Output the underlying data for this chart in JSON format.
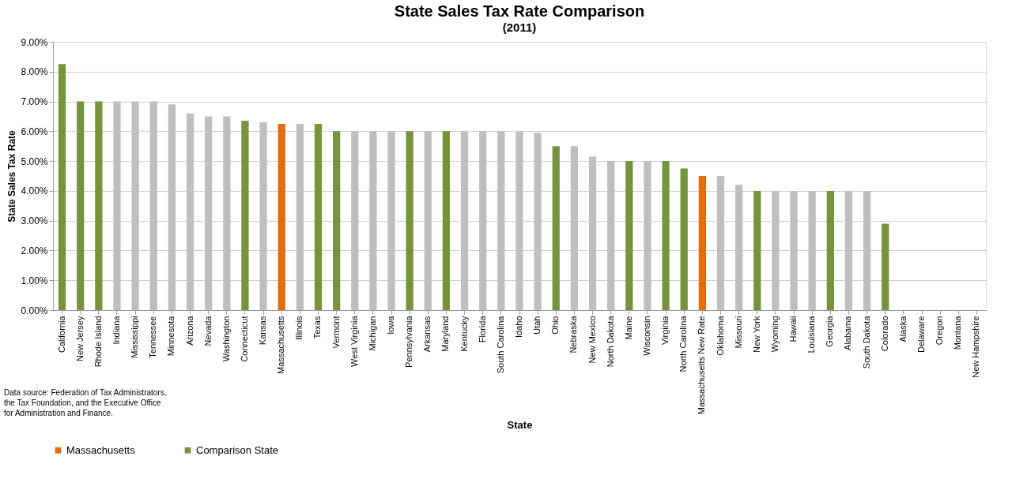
{
  "chart_data": {
    "type": "bar",
    "title": "State Sales Tax Rate Comparison",
    "subtitle": "(2011)",
    "xlabel": "State",
    "ylabel": "State Sales Tax Rate",
    "categories": [
      "California",
      "New Jersey",
      "Rhode Island",
      "Indiana",
      "Mississippi",
      "Tennessee",
      "Minnesota",
      "Arizona",
      "Nevada",
      "Washington",
      "Connecticut",
      "Kansas",
      "Massachusetts",
      "Illinois",
      "Texas",
      "Vermont",
      "West Virginia",
      "Michigan",
      "Iowa",
      "Pennsylvania",
      "Arkansas",
      "Maryland",
      "Kentucky",
      "Florida",
      "South Carolina",
      "Idaho",
      "Utah",
      "Ohio",
      "Nebraska",
      "New Mexico",
      "North Dakota",
      "Maine",
      "Wisconsin",
      "Virginia",
      "North Carolina",
      "Massachusetts New Rate",
      "Oklahoma",
      "Missouri",
      "New York",
      "Wyoming",
      "Hawaii",
      "Louisiana",
      "Georgia",
      "Alabama",
      "South Dakota",
      "Colorado",
      "Alaska",
      "Delaware",
      "Oregon",
      "Montana",
      "New Hampshire"
    ],
    "series": [
      {
        "name": "Massachusetts",
        "color": "#e46c0a",
        "values": [
          null,
          null,
          null,
          null,
          null,
          null,
          null,
          null,
          null,
          null,
          null,
          null,
          6.25,
          null,
          null,
          null,
          null,
          null,
          null,
          null,
          null,
          null,
          null,
          null,
          null,
          null,
          null,
          null,
          null,
          null,
          null,
          null,
          null,
          null,
          null,
          4.5,
          null,
          null,
          null,
          null,
          null,
          null,
          null,
          null,
          null,
          null,
          null,
          null,
          null,
          null,
          null
        ]
      },
      {
        "name": "Comparison State",
        "color": "#77933c",
        "values": [
          8.25,
          7,
          7,
          null,
          null,
          null,
          null,
          null,
          null,
          null,
          6.35,
          null,
          null,
          null,
          6.25,
          6,
          null,
          null,
          null,
          6,
          null,
          6,
          null,
          null,
          null,
          null,
          null,
          5.5,
          null,
          null,
          null,
          5,
          null,
          5,
          4.75,
          null,
          null,
          null,
          4,
          null,
          null,
          null,
          4,
          null,
          null,
          2.9,
          null,
          null,
          null,
          null,
          null
        ]
      },
      {
        "color": "#bfbfbf",
        "values": [
          null,
          null,
          null,
          7,
          7,
          7,
          6.9,
          6.6,
          6.5,
          6.5,
          null,
          6.3,
          null,
          6.25,
          null,
          null,
          6,
          6,
          6,
          null,
          6,
          null,
          6,
          6,
          6,
          6,
          5.95,
          null,
          5.5,
          5.15,
          5,
          null,
          5,
          null,
          null,
          null,
          4.5,
          4.2,
          null,
          4,
          4,
          4,
          null,
          4,
          4,
          null,
          0,
          0,
          0,
          0,
          0
        ]
      }
    ],
    "ylim": [
      0,
      9
    ],
    "yticks": [
      {
        "value": 0,
        "label": "0.00%"
      },
      {
        "value": 1,
        "label": "1.00%"
      },
      {
        "value": 2,
        "label": "2.00%"
      },
      {
        "value": 3,
        "label": "3.00%"
      },
      {
        "value": 4,
        "label": "4.00%"
      },
      {
        "value": 5,
        "label": "5.00%"
      },
      {
        "value": 6,
        "label": "6.00%"
      },
      {
        "value": 7,
        "label": "7.00%"
      },
      {
        "value": 8,
        "label": "8.00%"
      },
      {
        "value": 9,
        "label": "9.00%"
      }
    ],
    "grid": "y",
    "legend": "bottom",
    "annotations": [
      "Data source: Federation of Tax Administrators,\nthe Tax Foundation,  and the Executive Office\nfor Administration and Finance."
    ]
  }
}
